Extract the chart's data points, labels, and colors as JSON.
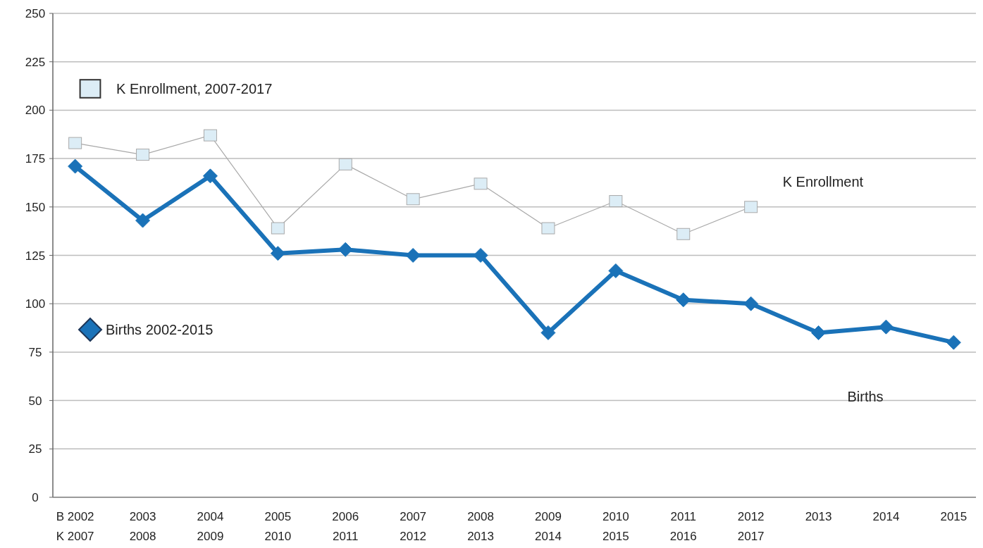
{
  "chart_data": {
    "type": "line",
    "categories": [
      "B 2002\nK 2007",
      "2003\n2008",
      "2004\n2009",
      "2005\n2010",
      "2006\n2011",
      "2007\n2012",
      "2008\n2013",
      "2009\n2014",
      "2010\n2015",
      "2011\n2016",
      "2012\n2017",
      "2013",
      "2014",
      "2015"
    ],
    "series": [
      {
        "name": "K Enrollment, 2007-2017",
        "color": "#a9a9a9",
        "marker": "square",
        "values": [
          183,
          177,
          187,
          139,
          172,
          154,
          162,
          139,
          153,
          136,
          150,
          null,
          null,
          null
        ]
      },
      {
        "name": "Births 2002-2015",
        "color": "#1a72b8",
        "marker": "diamond",
        "values": [
          171,
          143,
          166,
          126,
          128,
          125,
          125,
          85,
          117,
          102,
          100,
          85,
          88,
          80
        ]
      }
    ],
    "ylim": [
      0,
      250
    ],
    "yticks": [
      0,
      25,
      50,
      75,
      100,
      125,
      150,
      175,
      200,
      225,
      250
    ],
    "grid": "y",
    "legend": "left",
    "line_style": "solid",
    "annotations": [
      "K Enrollment",
      "Births"
    ]
  }
}
